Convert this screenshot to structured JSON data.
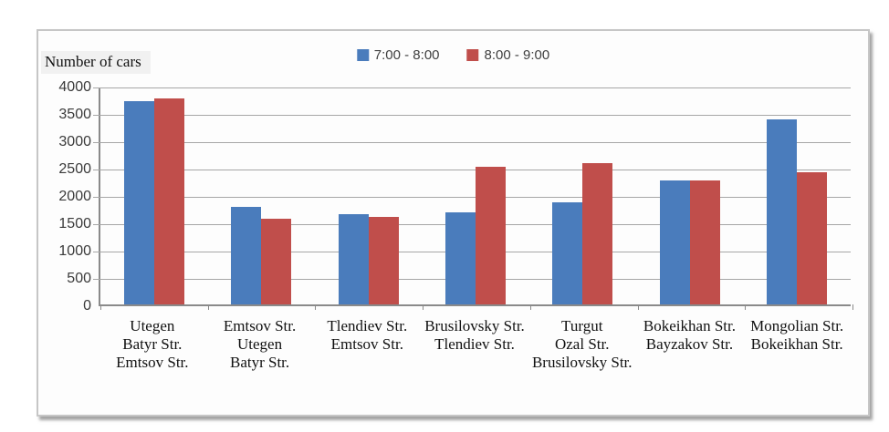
{
  "chart_data": {
    "type": "bar",
    "title": "",
    "ylabel": "Number of cars",
    "xlabel": "",
    "ylim": [
      0,
      4000
    ],
    "ytick_step": 500,
    "yticks": [
      0,
      500,
      1000,
      1500,
      2000,
      2500,
      3000,
      3500,
      4000
    ],
    "grid": true,
    "legend_position": "top-center",
    "categories": [
      [
        "Utegen",
        "Batyr Str.",
        "Emtsov Str."
      ],
      [
        "Emtsov Str.",
        "Utegen",
        "Batyr Str."
      ],
      [
        "Tlendiev Str.",
        "Emtsov Str."
      ],
      [
        "Brusilovsky Str.",
        "Tlendiev Str."
      ],
      [
        "Turgut",
        "Ozal Str.",
        "Brusilovsky Str."
      ],
      [
        "Bokeikhan Str.",
        "Bayzakov Str."
      ],
      [
        "Mongolian Str.",
        "Bokeikhan Str."
      ]
    ],
    "series": [
      {
        "name": "7:00 - 8:00",
        "color": "#4A7CBC",
        "values": [
          3720,
          1790,
          1650,
          1690,
          1870,
          2270,
          3380
        ]
      },
      {
        "name": "8:00 - 9:00",
        "color": "#C04E4B",
        "values": [
          3760,
          1570,
          1600,
          2520,
          2580,
          2270,
          2410
        ]
      }
    ]
  },
  "colors": {
    "gridline": "#a6a6a6",
    "axis": "#8a8a8a",
    "chart_border": "#c6c6c6",
    "background": "#fdfdfd"
  }
}
